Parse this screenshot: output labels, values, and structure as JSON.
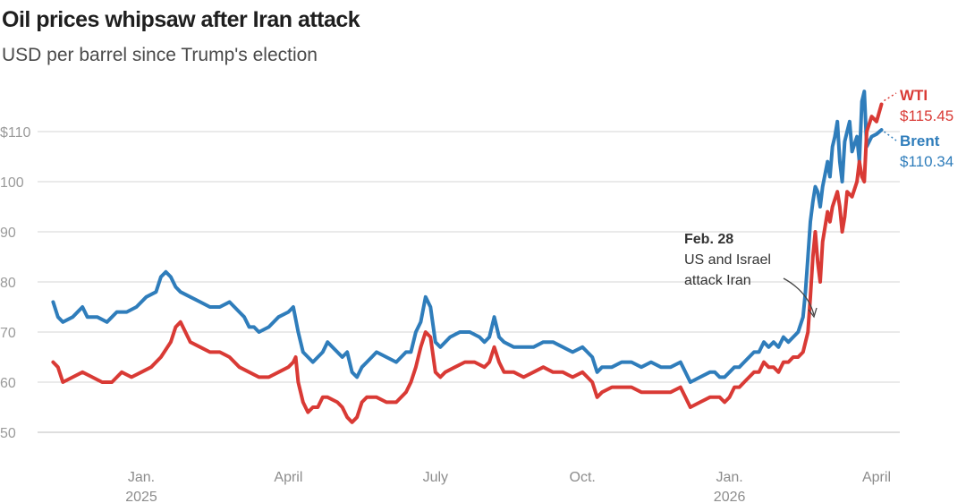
{
  "header": {
    "title": "Oil prices whipsaw after Iran attack",
    "subtitle": "USD per barrel since Trump's election"
  },
  "colors": {
    "brent": "#2f7dbb",
    "wti": "#d93a35"
  },
  "annotation": {
    "date": "Feb. 28",
    "lines": [
      "US and Israel",
      "attack Iran"
    ]
  },
  "chart_data": {
    "type": "line",
    "title": "Oil prices whipsaw after Iran attack",
    "subtitle": "USD per barrel since Trump's election",
    "xlabel": "",
    "ylabel": "USD per barrel",
    "ylim": [
      50,
      115
    ],
    "y_ticks": [
      {
        "value": 50,
        "label": "50"
      },
      {
        "value": 60,
        "label": "60"
      },
      {
        "value": 70,
        "label": "70"
      },
      {
        "value": 80,
        "label": "80"
      },
      {
        "value": 90,
        "label": "90"
      },
      {
        "value": 100,
        "label": "100"
      },
      {
        "value": 110,
        "label": "$110"
      }
    ],
    "x_unit": "months since Nov. 2024",
    "xlim": [
      0.15,
      17.4
    ],
    "x_ticks": [
      {
        "x": 2,
        "label": "Jan.",
        "sub": "2025"
      },
      {
        "x": 5,
        "label": "April",
        "sub": ""
      },
      {
        "x": 8,
        "label": "July",
        "sub": ""
      },
      {
        "x": 11,
        "label": "Oct.",
        "sub": ""
      },
      {
        "x": 14,
        "label": "Jan.",
        "sub": "2026"
      },
      {
        "x": 17,
        "label": "April",
        "sub": ""
      }
    ],
    "grid": true,
    "series": [
      {
        "name": "Brent",
        "key": "brent",
        "end_label": "$110.34",
        "points": [
          [
            0.2,
            76
          ],
          [
            0.3,
            73
          ],
          [
            0.4,
            72
          ],
          [
            0.6,
            73
          ],
          [
            0.8,
            75
          ],
          [
            0.9,
            73
          ],
          [
            1.1,
            73
          ],
          [
            1.3,
            72
          ],
          [
            1.5,
            74
          ],
          [
            1.7,
            74
          ],
          [
            1.9,
            75
          ],
          [
            2.1,
            77
          ],
          [
            2.3,
            78
          ],
          [
            2.4,
            81
          ],
          [
            2.5,
            82
          ],
          [
            2.6,
            81
          ],
          [
            2.7,
            79
          ],
          [
            2.8,
            78
          ],
          [
            3.0,
            77
          ],
          [
            3.2,
            76
          ],
          [
            3.4,
            75
          ],
          [
            3.6,
            75
          ],
          [
            3.8,
            76
          ],
          [
            4.0,
            74
          ],
          [
            4.1,
            73
          ],
          [
            4.2,
            71
          ],
          [
            4.3,
            71
          ],
          [
            4.4,
            70
          ],
          [
            4.6,
            71
          ],
          [
            4.8,
            73
          ],
          [
            5.0,
            74
          ],
          [
            5.1,
            75
          ],
          [
            5.2,
            70
          ],
          [
            5.3,
            66
          ],
          [
            5.4,
            65
          ],
          [
            5.5,
            64
          ],
          [
            5.6,
            65
          ],
          [
            5.7,
            66
          ],
          [
            5.8,
            68
          ],
          [
            5.9,
            67
          ],
          [
            6.0,
            66
          ],
          [
            6.1,
            65
          ],
          [
            6.2,
            66
          ],
          [
            6.3,
            62
          ],
          [
            6.4,
            61
          ],
          [
            6.5,
            63
          ],
          [
            6.6,
            64
          ],
          [
            6.7,
            65
          ],
          [
            6.8,
            66
          ],
          [
            7.0,
            65
          ],
          [
            7.2,
            64
          ],
          [
            7.4,
            66
          ],
          [
            7.5,
            66
          ],
          [
            7.6,
            70
          ],
          [
            7.7,
            72
          ],
          [
            7.8,
            77
          ],
          [
            7.9,
            75
          ],
          [
            8.0,
            68
          ],
          [
            8.1,
            67
          ],
          [
            8.2,
            68
          ],
          [
            8.3,
            69
          ],
          [
            8.5,
            70
          ],
          [
            8.7,
            70
          ],
          [
            8.9,
            69
          ],
          [
            9.0,
            68
          ],
          [
            9.1,
            69
          ],
          [
            9.2,
            73
          ],
          [
            9.3,
            69
          ],
          [
            9.4,
            68
          ],
          [
            9.6,
            67
          ],
          [
            9.8,
            67
          ],
          [
            10.0,
            67
          ],
          [
            10.2,
            68
          ],
          [
            10.4,
            68
          ],
          [
            10.6,
            67
          ],
          [
            10.8,
            66
          ],
          [
            11.0,
            67
          ],
          [
            11.1,
            66
          ],
          [
            11.2,
            65
          ],
          [
            11.3,
            62
          ],
          [
            11.4,
            63
          ],
          [
            11.6,
            63
          ],
          [
            11.8,
            64
          ],
          [
            12.0,
            64
          ],
          [
            12.2,
            63
          ],
          [
            12.4,
            64
          ],
          [
            12.6,
            63
          ],
          [
            12.8,
            63
          ],
          [
            13.0,
            64
          ],
          [
            13.1,
            62
          ],
          [
            13.2,
            60
          ],
          [
            13.4,
            61
          ],
          [
            13.6,
            62
          ],
          [
            13.7,
            62
          ],
          [
            13.8,
            61
          ],
          [
            13.9,
            61
          ],
          [
            14.0,
            62
          ],
          [
            14.1,
            63
          ],
          [
            14.2,
            63
          ],
          [
            14.3,
            64
          ],
          [
            14.4,
            65
          ],
          [
            14.5,
            66
          ],
          [
            14.6,
            66
          ],
          [
            14.7,
            68
          ],
          [
            14.8,
            67
          ],
          [
            14.9,
            68
          ],
          [
            15.0,
            67
          ],
          [
            15.1,
            69
          ],
          [
            15.2,
            68
          ],
          [
            15.3,
            69
          ],
          [
            15.4,
            70
          ],
          [
            15.5,
            73
          ],
          [
            15.55,
            78
          ],
          [
            15.6,
            85
          ],
          [
            15.65,
            92
          ],
          [
            15.7,
            96
          ],
          [
            15.75,
            99
          ],
          [
            15.8,
            98
          ],
          [
            15.85,
            95
          ],
          [
            15.9,
            99
          ],
          [
            16.0,
            104
          ],
          [
            16.05,
            101
          ],
          [
            16.1,
            107
          ],
          [
            16.15,
            109
          ],
          [
            16.2,
            112
          ],
          [
            16.25,
            104
          ],
          [
            16.3,
            100
          ],
          [
            16.35,
            108
          ],
          [
            16.4,
            110
          ],
          [
            16.45,
            112
          ],
          [
            16.5,
            106
          ],
          [
            16.6,
            109
          ],
          [
            16.65,
            104
          ],
          [
            16.7,
            116
          ],
          [
            16.75,
            118
          ],
          [
            16.8,
            107
          ],
          [
            16.9,
            109
          ],
          [
            17.0,
            109.5
          ],
          [
            17.1,
            110.34
          ]
        ]
      },
      {
        "name": "WTI",
        "key": "wti",
        "end_label": "$115.45",
        "points": [
          [
            0.2,
            64
          ],
          [
            0.3,
            63
          ],
          [
            0.4,
            60
          ],
          [
            0.6,
            61
          ],
          [
            0.8,
            62
          ],
          [
            1.0,
            61
          ],
          [
            1.2,
            60
          ],
          [
            1.4,
            60
          ],
          [
            1.6,
            62
          ],
          [
            1.8,
            61
          ],
          [
            2.0,
            62
          ],
          [
            2.2,
            63
          ],
          [
            2.4,
            65
          ],
          [
            2.6,
            68
          ],
          [
            2.7,
            71
          ],
          [
            2.8,
            72
          ],
          [
            2.9,
            70
          ],
          [
            3.0,
            68
          ],
          [
            3.2,
            67
          ],
          [
            3.4,
            66
          ],
          [
            3.6,
            66
          ],
          [
            3.8,
            65
          ],
          [
            4.0,
            63
          ],
          [
            4.2,
            62
          ],
          [
            4.4,
            61
          ],
          [
            4.6,
            61
          ],
          [
            4.8,
            62
          ],
          [
            5.0,
            63
          ],
          [
            5.1,
            64
          ],
          [
            5.15,
            65
          ],
          [
            5.2,
            60
          ],
          [
            5.3,
            56
          ],
          [
            5.4,
            54
          ],
          [
            5.5,
            55
          ],
          [
            5.6,
            55
          ],
          [
            5.7,
            57
          ],
          [
            5.8,
            57
          ],
          [
            6.0,
            56
          ],
          [
            6.1,
            55
          ],
          [
            6.2,
            53
          ],
          [
            6.3,
            52
          ],
          [
            6.4,
            53
          ],
          [
            6.5,
            56
          ],
          [
            6.6,
            57
          ],
          [
            6.8,
            57
          ],
          [
            7.0,
            56
          ],
          [
            7.2,
            56
          ],
          [
            7.4,
            58
          ],
          [
            7.5,
            60
          ],
          [
            7.6,
            63
          ],
          [
            7.7,
            67
          ],
          [
            7.8,
            70
          ],
          [
            7.9,
            69
          ],
          [
            8.0,
            62
          ],
          [
            8.1,
            61
          ],
          [
            8.2,
            62
          ],
          [
            8.4,
            63
          ],
          [
            8.6,
            64
          ],
          [
            8.8,
            64
          ],
          [
            9.0,
            63
          ],
          [
            9.1,
            64
          ],
          [
            9.2,
            67
          ],
          [
            9.3,
            64
          ],
          [
            9.4,
            62
          ],
          [
            9.6,
            62
          ],
          [
            9.8,
            61
          ],
          [
            10.0,
            62
          ],
          [
            10.2,
            63
          ],
          [
            10.4,
            62
          ],
          [
            10.6,
            62
          ],
          [
            10.8,
            61
          ],
          [
            11.0,
            62
          ],
          [
            11.1,
            61
          ],
          [
            11.2,
            60
          ],
          [
            11.3,
            57
          ],
          [
            11.4,
            58
          ],
          [
            11.6,
            59
          ],
          [
            11.8,
            59
          ],
          [
            12.0,
            59
          ],
          [
            12.2,
            58
          ],
          [
            12.4,
            58
          ],
          [
            12.6,
            58
          ],
          [
            12.8,
            58
          ],
          [
            13.0,
            59
          ],
          [
            13.1,
            57
          ],
          [
            13.2,
            55
          ],
          [
            13.4,
            56
          ],
          [
            13.6,
            57
          ],
          [
            13.8,
            57
          ],
          [
            13.9,
            56
          ],
          [
            14.0,
            57
          ],
          [
            14.1,
            59
          ],
          [
            14.2,
            59
          ],
          [
            14.3,
            60
          ],
          [
            14.4,
            61
          ],
          [
            14.5,
            62
          ],
          [
            14.6,
            62
          ],
          [
            14.7,
            64
          ],
          [
            14.8,
            63
          ],
          [
            14.9,
            63
          ],
          [
            15.0,
            62
          ],
          [
            15.1,
            64
          ],
          [
            15.2,
            64
          ],
          [
            15.3,
            65
          ],
          [
            15.4,
            65
          ],
          [
            15.5,
            66
          ],
          [
            15.6,
            70
          ],
          [
            15.65,
            77
          ],
          [
            15.7,
            85
          ],
          [
            15.75,
            90
          ],
          [
            15.8,
            84
          ],
          [
            15.85,
            80
          ],
          [
            15.9,
            88
          ],
          [
            16.0,
            94
          ],
          [
            16.05,
            92
          ],
          [
            16.1,
            95
          ],
          [
            16.2,
            98
          ],
          [
            16.25,
            95
          ],
          [
            16.3,
            90
          ],
          [
            16.35,
            93
          ],
          [
            16.4,
            98
          ],
          [
            16.5,
            97
          ],
          [
            16.6,
            100
          ],
          [
            16.65,
            104
          ],
          [
            16.7,
            101
          ],
          [
            16.75,
            100
          ],
          [
            16.8,
            110
          ],
          [
            16.9,
            113
          ],
          [
            17.0,
            112
          ],
          [
            17.1,
            115.45
          ]
        ]
      }
    ]
  }
}
